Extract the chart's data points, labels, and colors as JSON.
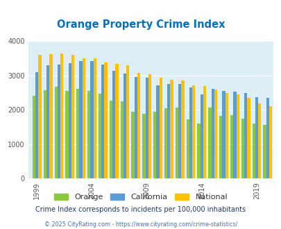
{
  "title": "Orange Property Crime Index",
  "subtitle": "Crime Index corresponds to incidents per 100,000 inhabitants",
  "footer": "© 2025 CityRating.com - https://www.cityrating.com/crime-statistics/",
  "years": [
    1999,
    2000,
    2001,
    2002,
    2003,
    2004,
    2005,
    2006,
    2007,
    2008,
    2009,
    2010,
    2011,
    2012,
    2013,
    2014,
    2015,
    2016,
    2017,
    2018,
    2019,
    2020
  ],
  "orange": [
    2420,
    2580,
    2680,
    2550,
    2620,
    2550,
    2470,
    2280,
    2250,
    1950,
    1880,
    1950,
    2050,
    2060,
    1730,
    1600,
    2070,
    1830,
    1840,
    1750,
    1600,
    1570
  ],
  "california": [
    3100,
    3310,
    3330,
    3370,
    3430,
    3420,
    3320,
    3140,
    3050,
    2950,
    2940,
    2720,
    2750,
    2760,
    2650,
    2460,
    2610,
    2560,
    2540,
    2490,
    2380,
    2350
  ],
  "national": [
    3600,
    3630,
    3640,
    3600,
    3500,
    3500,
    3380,
    3340,
    3300,
    3070,
    3030,
    2940,
    2880,
    2860,
    2720,
    2700,
    2600,
    2500,
    2450,
    2360,
    2200,
    2100
  ],
  "orange_color": "#8dc63f",
  "california_color": "#5b9bd5",
  "national_color": "#ffc000",
  "bg_color": "#deeef6",
  "title_color": "#0070c0",
  "ylim": [
    0,
    4000
  ],
  "yticks": [
    0,
    1000,
    2000,
    3000,
    4000
  ],
  "bar_width": 0.27,
  "legend_labels": [
    "Orange",
    "California",
    "National"
  ],
  "subtitle_color": "#203864",
  "footer_color": "#4472c4",
  "xtick_years": [
    1999,
    2004,
    2009,
    2014,
    2019
  ]
}
